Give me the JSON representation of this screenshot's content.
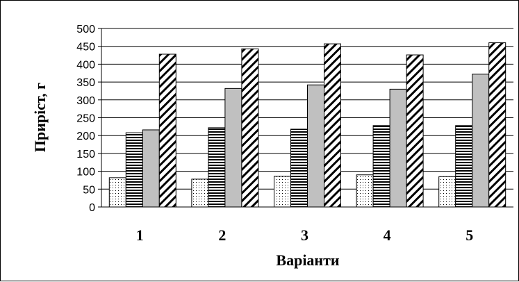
{
  "chart_data": {
    "type": "bar",
    "title": "",
    "xlabel": "Варіанти",
    "ylabel": "Приріст, г",
    "ylim": [
      0,
      500
    ],
    "ytick_step": 50,
    "grid": true,
    "categories": [
      "1",
      "2",
      "3",
      "4",
      "5"
    ],
    "series": [
      {
        "pattern": "dots",
        "fill": "#ffffff",
        "values": [
          82,
          78,
          86,
          90,
          85
        ]
      },
      {
        "pattern": "horizontal-lines",
        "fill": "#ffffff",
        "values": [
          208,
          222,
          218,
          228,
          228
        ]
      },
      {
        "pattern": "solid-gray",
        "fill": "#c0c0c0",
        "values": [
          216,
          332,
          342,
          330,
          372
        ]
      },
      {
        "pattern": "diagonal-lines",
        "fill": "#ffffff",
        "values": [
          428,
          443,
          457,
          426,
          460
        ]
      }
    ]
  }
}
